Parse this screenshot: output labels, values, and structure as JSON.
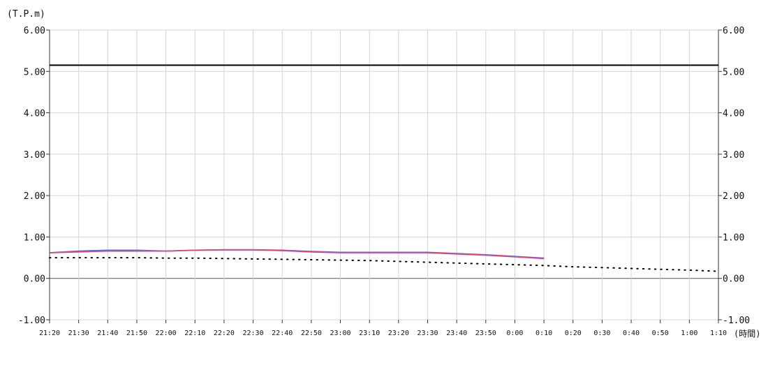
{
  "chart_data": {
    "type": "line",
    "ylabel": "(T.P.m)",
    "xlabel": "(時間)",
    "ylim": [
      -1.0,
      6.0
    ],
    "y_ticks": [
      "6.00",
      "5.00",
      "4.00",
      "3.00",
      "2.00",
      "1.00",
      "0.00",
      "-1.00"
    ],
    "y_tick_values": [
      6,
      5,
      4,
      3,
      2,
      1,
      0,
      -1
    ],
    "x_ticks": [
      "21:20",
      "21:30",
      "21:40",
      "21:50",
      "22:00",
      "22:10",
      "22:20",
      "22:30",
      "22:40",
      "22:50",
      "23:00",
      "23:10",
      "23:20",
      "23:30",
      "23:40",
      "23:50",
      "0:00",
      "0:10",
      "0:20",
      "0:30",
      "0:40",
      "0:50",
      "1:00",
      "1:10"
    ],
    "grid": true,
    "reference_line": {
      "y": 5.15,
      "color": "#000000"
    },
    "series": [
      {
        "color": "#4f6bd8",
        "style": "solid",
        "x": [
          "21:20",
          "21:30",
          "21:40",
          "21:50",
          "22:00",
          "22:10",
          "22:20",
          "22:30",
          "22:40",
          "22:50",
          "23:00",
          "23:10",
          "23:20",
          "23:30",
          "23:40",
          "23:50",
          "0:00",
          "0:10"
        ],
        "values": [
          0.62,
          0.66,
          0.68,
          0.68,
          0.66,
          0.68,
          0.69,
          0.69,
          0.68,
          0.65,
          0.63,
          0.63,
          0.63,
          0.63,
          0.6,
          0.57,
          0.53,
          0.49
        ]
      },
      {
        "color": "#e0457a",
        "style": "solid",
        "x": [
          "21:20",
          "21:30",
          "21:40",
          "21:50",
          "22:00",
          "22:10",
          "22:20",
          "22:30",
          "22:40",
          "22:50",
          "23:00",
          "23:10",
          "23:20",
          "23:30",
          "23:40",
          "23:50",
          "0:00",
          "0:10"
        ],
        "values": [
          0.62,
          0.64,
          0.66,
          0.66,
          0.66,
          0.68,
          0.69,
          0.69,
          0.67,
          0.64,
          0.62,
          0.62,
          0.62,
          0.62,
          0.59,
          0.56,
          0.52,
          0.48
        ]
      },
      {
        "color": "#000000",
        "style": "dotted",
        "x": [
          "21:20",
          "21:30",
          "21:40",
          "21:50",
          "22:00",
          "22:10",
          "22:20",
          "22:30",
          "22:40",
          "22:50",
          "23:00",
          "23:10",
          "23:20",
          "23:30",
          "23:40",
          "23:50",
          "0:00",
          "0:10",
          "0:20",
          "0:30",
          "0:40",
          "0:50",
          "1:00",
          "1:10"
        ],
        "values": [
          0.5,
          0.5,
          0.5,
          0.5,
          0.49,
          0.49,
          0.48,
          0.47,
          0.46,
          0.45,
          0.44,
          0.43,
          0.41,
          0.39,
          0.37,
          0.35,
          0.33,
          0.31,
          0.28,
          0.26,
          0.24,
          0.22,
          0.2,
          0.17
        ]
      }
    ]
  }
}
